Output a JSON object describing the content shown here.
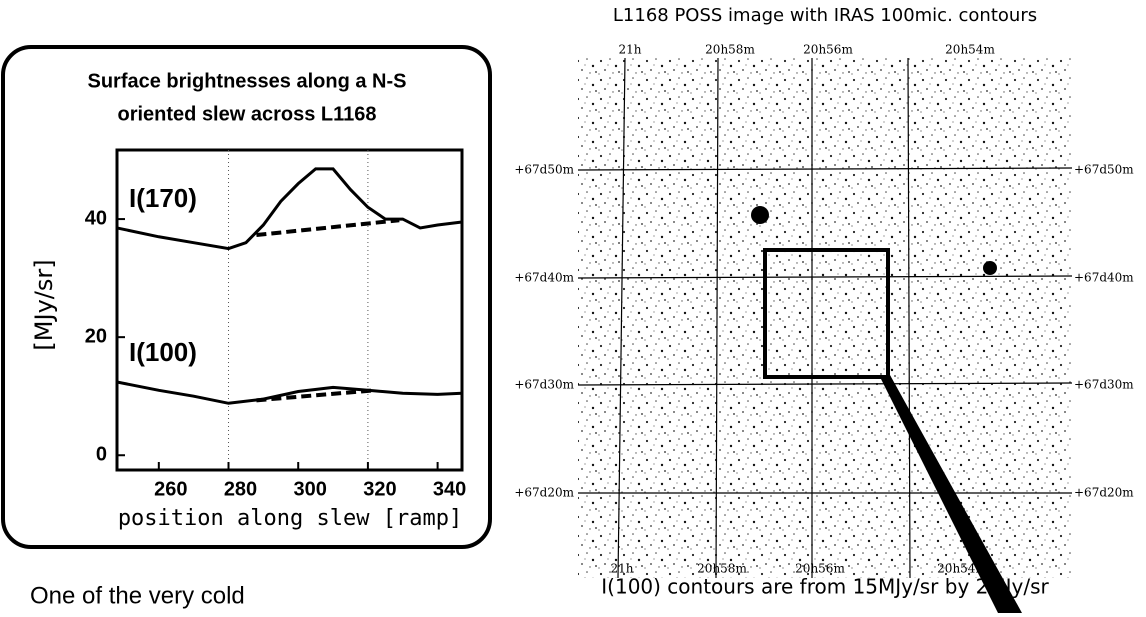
{
  "chart_data": {
    "type": "line",
    "title": "Surface brightnesses along a N-S oriented slew across L1168",
    "x_label": "position along slew [ramp]",
    "y_label": "[MJy/sr]",
    "xlim": [
      248,
      347
    ],
    "ylim": [
      -2.5,
      51.7
    ],
    "xticks": [
      260,
      280,
      300,
      320,
      340
    ],
    "yticks": [
      0,
      20,
      40
    ],
    "x_gridlines": [
      280,
      320
    ],
    "series": [
      {
        "name": "I(170)",
        "color": "#000000",
        "x": [
          248,
          260,
          270,
          280,
          285,
          290,
          295,
          300,
          305,
          310,
          315,
          320,
          325,
          330,
          335,
          340,
          347
        ],
        "values": [
          38.5,
          37,
          36,
          35,
          36,
          39,
          43,
          46,
          48.5,
          48.5,
          45,
          42,
          40,
          40,
          38.5,
          39,
          39.5
        ]
      },
      {
        "name": "I(100)",
        "color": "#000000",
        "x": [
          248,
          260,
          270,
          280,
          290,
          300,
          310,
          320,
          330,
          340,
          347
        ],
        "values": [
          12.4,
          11,
          10,
          8.8,
          9.5,
          10.8,
          11.5,
          11,
          10.5,
          10.3,
          10.5
        ]
      }
    ],
    "baselines": [
      {
        "x": [
          288,
          329
        ],
        "values": [
          37.3,
          39.8
        ]
      },
      {
        "x": [
          288,
          322
        ],
        "values": [
          9.3,
          11
        ]
      }
    ]
  },
  "image_panel": {
    "title": "L1168 POSS image with IRAS 100mic. contours",
    "ra_labels": [
      "21h",
      "20h58m",
      "20h56m",
      "20h54m"
    ],
    "dec_labels": [
      "+67d50m",
      "+67d40m",
      "+67d30m",
      "+67d20m"
    ],
    "caption": "I(100) contours are from 15MJy/sr by 2MJy/sr"
  },
  "body_text": "One of the very cold"
}
